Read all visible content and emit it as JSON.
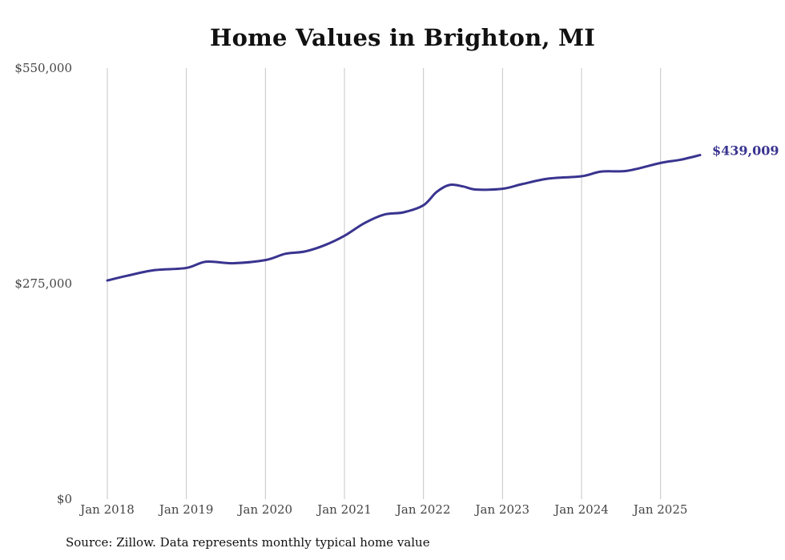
{
  "chart_data": {
    "type": "line",
    "title": "Home Values in Brighton, MI",
    "source": "Source: Zillow. Data represents monthly typical home value",
    "xlabel": "",
    "ylabel": "",
    "ylim": [
      0,
      550000
    ],
    "xlim": [
      "2018-01",
      "2025-07"
    ],
    "y_ticks": [
      {
        "value": 0,
        "label": "$0"
      },
      {
        "value": 275000,
        "label": "$275,000"
      },
      {
        "value": 550000,
        "label": "$550,000"
      }
    ],
    "x_ticks": [
      {
        "value": "2018-01",
        "label": "Jan 2018"
      },
      {
        "value": "2019-01",
        "label": "Jan 2019"
      },
      {
        "value": "2020-01",
        "label": "Jan 2020"
      },
      {
        "value": "2021-01",
        "label": "Jan 2021"
      },
      {
        "value": "2022-01",
        "label": "Jan 2022"
      },
      {
        "value": "2023-01",
        "label": "Jan 2023"
      },
      {
        "value": "2024-01",
        "label": "Jan 2024"
      },
      {
        "value": "2025-01",
        "label": "Jan 2025"
      }
    ],
    "grid": {
      "vertical": true,
      "horizontal": false
    },
    "line_color": "#39348f",
    "end_label": "$439,009",
    "series": [
      {
        "points": [
          {
            "x": "2018-01",
            "y": 279000
          },
          {
            "x": "2018-04",
            "y": 285000
          },
          {
            "x": "2018-08",
            "y": 292000
          },
          {
            "x": "2019-01",
            "y": 295000
          },
          {
            "x": "2019-04",
            "y": 303000
          },
          {
            "x": "2019-08",
            "y": 301000
          },
          {
            "x": "2020-01",
            "y": 305000
          },
          {
            "x": "2020-04",
            "y": 313000
          },
          {
            "x": "2020-07",
            "y": 316000
          },
          {
            "x": "2020-10",
            "y": 324000
          },
          {
            "x": "2021-01",
            "y": 336000
          },
          {
            "x": "2021-04",
            "y": 352000
          },
          {
            "x": "2021-07",
            "y": 363000
          },
          {
            "x": "2021-10",
            "y": 366000
          },
          {
            "x": "2022-01",
            "y": 375000
          },
          {
            "x": "2022-03",
            "y": 392000
          },
          {
            "x": "2022-05",
            "y": 401000
          },
          {
            "x": "2022-07",
            "y": 399000
          },
          {
            "x": "2022-09",
            "y": 395000
          },
          {
            "x": "2023-01",
            "y": 396000
          },
          {
            "x": "2023-04",
            "y": 402000
          },
          {
            "x": "2023-08",
            "y": 409000
          },
          {
            "x": "2024-01",
            "y": 412000
          },
          {
            "x": "2024-04",
            "y": 418000
          },
          {
            "x": "2024-08",
            "y": 419000
          },
          {
            "x": "2025-01",
            "y": 429000
          },
          {
            "x": "2025-04",
            "y": 433000
          },
          {
            "x": "2025-07",
            "y": 439009
          }
        ]
      }
    ]
  }
}
